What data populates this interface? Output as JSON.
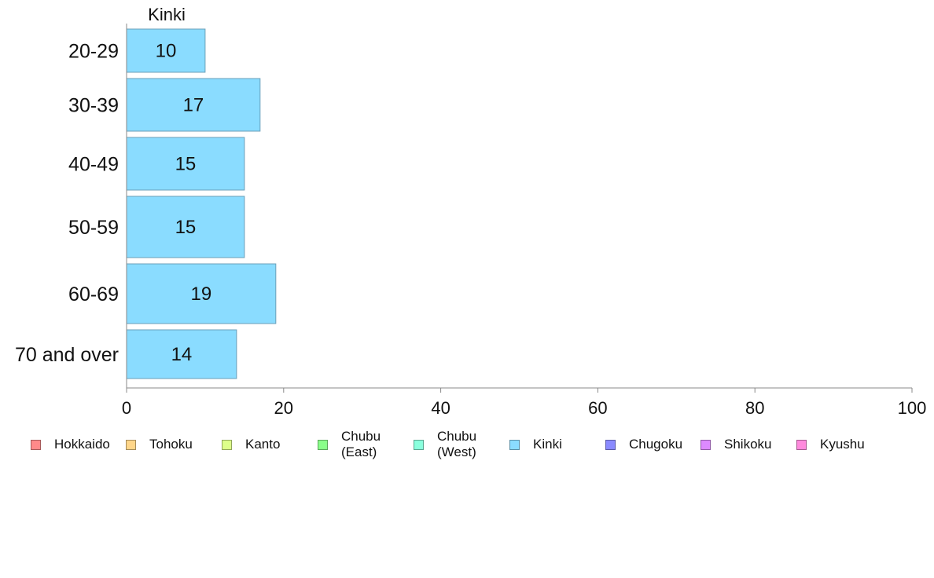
{
  "chart_data": {
    "type": "bar",
    "orientation": "horizontal",
    "title": "Kinki",
    "categories": [
      "20-29",
      "30-39",
      "40-49",
      "50-59",
      "60-69",
      "70 and over"
    ],
    "series": [
      {
        "name": "Kinki",
        "color": "#8adcff",
        "values": [
          10,
          17,
          15,
          15,
          19,
          14
        ]
      }
    ],
    "data_labels": [
      "10",
      "17",
      "15",
      "15",
      "19",
      "14"
    ],
    "xlim": [
      0,
      100
    ],
    "xticks": [
      0,
      20,
      40,
      60,
      80,
      100
    ],
    "xtick_labels": [
      "0",
      "20",
      "40",
      "60",
      "80",
      "100"
    ],
    "grid": false,
    "legend_position": "bottom"
  },
  "legend": {
    "items": [
      {
        "label": "Hokkaido",
        "color": "#ff8a8a"
      },
      {
        "label": "Tohoku",
        "color": "#ffd68a"
      },
      {
        "label": "Kanto",
        "color": "#ddff8a"
      },
      {
        "label": "Chubu\n(East)",
        "color": "#8aff8a"
      },
      {
        "label": "Chubu\n(West)",
        "color": "#8affdd"
      },
      {
        "label": "Kinki",
        "color": "#8adcff"
      },
      {
        "label": "Chugoku",
        "color": "#8a8aff"
      },
      {
        "label": "Shikoku",
        "color": "#dd8aff"
      },
      {
        "label": "Kyushu",
        "color": "#ff8add"
      }
    ]
  }
}
